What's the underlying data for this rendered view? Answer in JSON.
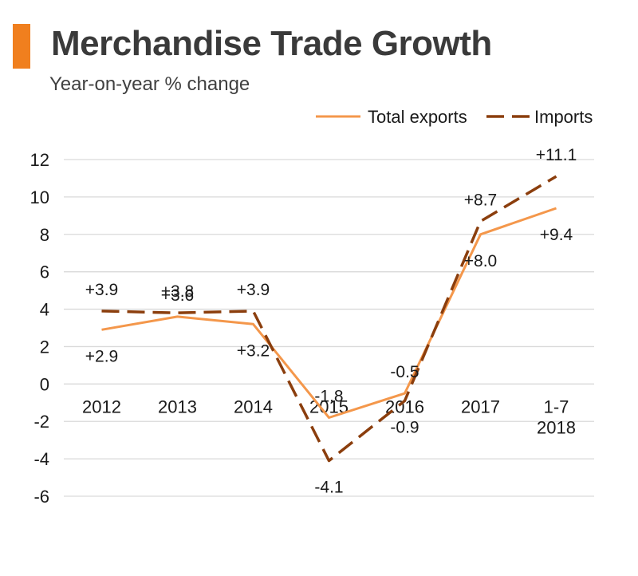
{
  "header": {
    "title": "Merchandise Trade Growth",
    "subtitle": "Year-on-year % change",
    "accent_color": "#f07f1e"
  },
  "chart_data": {
    "type": "line",
    "categories": [
      "2012",
      "2013",
      "2014",
      "2015",
      "2016",
      "2017",
      "1-7 2018"
    ],
    "series": [
      {
        "name": "Total exports",
        "values": [
          2.9,
          3.6,
          3.2,
          -1.8,
          -0.5,
          8.0,
          9.4
        ],
        "labels": [
          "+2.9",
          "+3.6",
          "+3.2",
          "-1.8",
          "-0.5",
          "+8.0",
          "+9.4"
        ],
        "color": "#f4974b",
        "style": "solid"
      },
      {
        "name": "Imports",
        "values": [
          3.9,
          3.8,
          3.9,
          -4.1,
          -0.9,
          8.7,
          11.1
        ],
        "labels": [
          "+3.9",
          "+3.8",
          "+3.9",
          "-4.1",
          "-0.9",
          "+8.7",
          "+11.1"
        ],
        "color": "#8b3e0d",
        "style": "dashed"
      }
    ],
    "ylim": [
      -6,
      12
    ],
    "yticks": [
      "12",
      "10",
      "8",
      "6",
      "4",
      "2",
      "0",
      "-2",
      "-4",
      "-6"
    ],
    "grid": true,
    "legend_position": "top-right"
  }
}
